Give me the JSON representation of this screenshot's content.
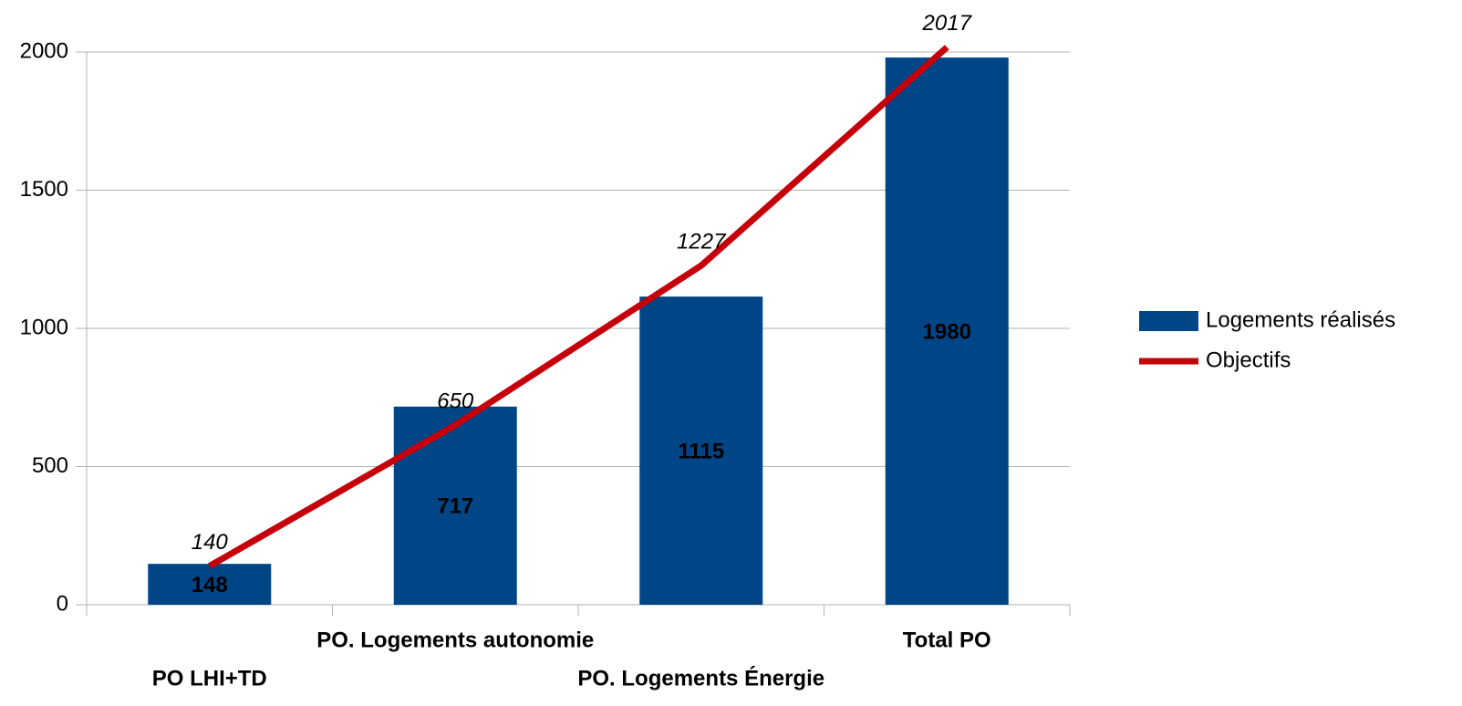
{
  "chart_data": {
    "type": "bar",
    "categories": [
      "PO LHI+TD",
      "PO. Logements autonomie",
      "PO. Logements Énergie",
      "Total PO"
    ],
    "series": [
      {
        "name": "Logements réalisés",
        "type": "bar",
        "color": "#004586",
        "values": [
          148,
          717,
          1115,
          1980
        ]
      },
      {
        "name": "Objectifs",
        "type": "line",
        "color": "#c5000b",
        "values": [
          140,
          650,
          1227,
          2017
        ]
      }
    ],
    "ylim": [
      0,
      2000
    ],
    "yticks": [
      0,
      500,
      1000,
      1500,
      2000
    ],
    "grid": true,
    "legend": "right"
  }
}
